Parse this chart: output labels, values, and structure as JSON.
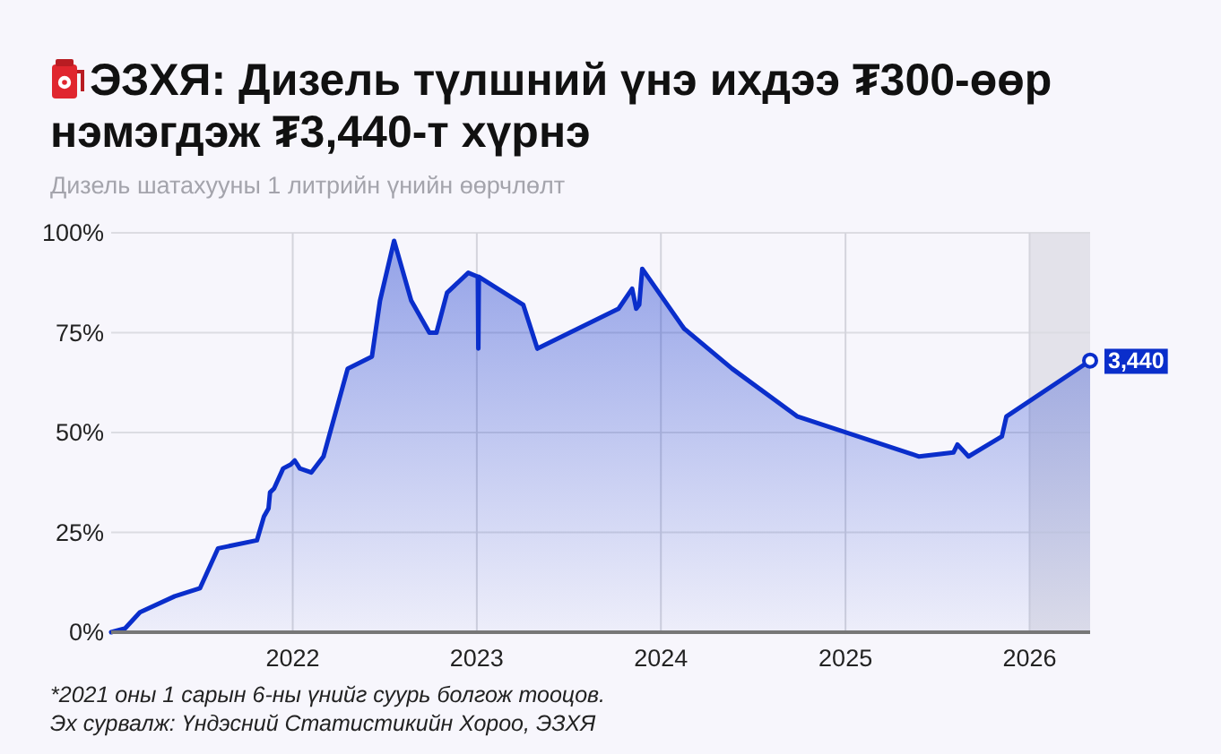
{
  "chart_data": {
    "type": "area",
    "title": "ЭЗХЯ: Дизель түлшний үнэ ихдээ ₮300-өөр нэмэгдэж ₮3,440-т хүрнэ",
    "subtitle": "Дизель шатахууны 1 литрийн үнийн өөрчлөлт",
    "x": [
      "2021-01-06",
      "2021-02-03",
      "2021-03-04",
      "2021-05-12",
      "2021-07-01",
      "2021-08-06",
      "2021-10-22",
      "2021-11-05",
      "2021-11-14",
      "2021-11-17",
      "2021-11-25",
      "2021-12-13",
      "2021-12-28",
      "2022-01-05",
      "2022-01-15",
      "2022-02-07",
      "2022-03-03",
      "2022-04-20",
      "2022-06-07",
      "2022-06-23",
      "2022-07-21",
      "2022-08-24",
      "2022-09-29",
      "2022-10-13",
      "2022-11-03",
      "2022-12-15",
      "2023-01-03",
      "2023-01-04",
      "2023-01-05",
      "2023-04-03",
      "2023-05-01",
      "2023-10-09",
      "2023-11-05",
      "2023-11-13",
      "2023-11-19",
      "2023-11-25",
      "2024-02-16",
      "2024-05-21",
      "2024-09-28",
      "2025-05-27",
      "2025-08-03",
      "2025-08-11",
      "2025-09-02",
      "2025-11-07",
      "2025-11-16",
      "2026-05-01"
    ],
    "values": [
      0,
      1,
      5,
      9,
      11,
      21,
      23,
      29,
      31,
      35,
      36,
      41,
      42,
      43,
      41,
      40,
      44,
      66,
      69,
      83,
      98,
      83,
      75,
      75,
      85,
      90,
      89,
      71,
      89,
      82,
      71,
      81,
      86,
      81,
      82,
      91,
      76,
      66,
      54,
      44,
      45,
      47,
      44,
      49,
      54,
      68
    ],
    "color": "#0a2ecb",
    "xlim": [
      "2021-01-06",
      "2026-05-01"
    ],
    "xticks": [
      "2022",
      "2023",
      "2024",
      "2025",
      "2026"
    ],
    "ylim": [
      0,
      100
    ],
    "yticks": [
      {
        "value": 0,
        "label": "0%"
      },
      {
        "value": 25,
        "label": "25%"
      },
      {
        "value": 50,
        "label": "50%"
      },
      {
        "value": 75,
        "label": "75%"
      },
      {
        "value": 100,
        "label": "100%"
      }
    ],
    "grid": true,
    "bands": [
      {
        "axis": "x",
        "from": "2026",
        "to": "2026-05-01",
        "color": "#e3e2ea"
      }
    ],
    "annotations": [
      {
        "text": "3,440",
        "x": "2026-05-01",
        "y": 68
      },
      "*2021 оны 1 сарын 6-ны үнийг суурь болгож тооцов.",
      "Эх сурвалж: Үндэсний Статистикийн Хороо, ЭЗХЯ"
    ]
  }
}
